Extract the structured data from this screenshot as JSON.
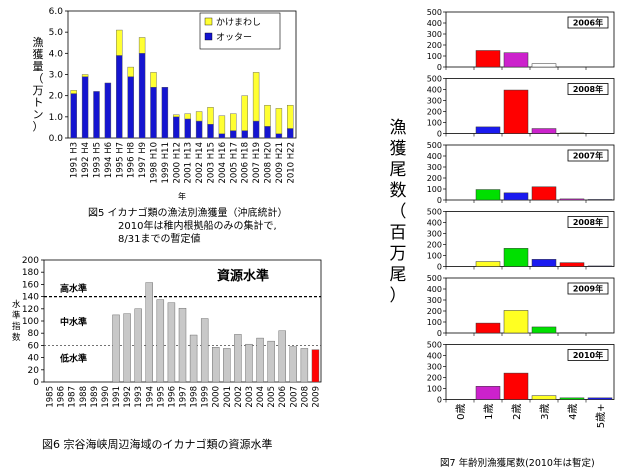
{
  "chart_data": [
    {
      "type": "bar",
      "stacked": true,
      "ylabel": "漁獲量（万トン）",
      "xlabel": "年",
      "ylim": [
        0,
        6
      ],
      "yticks": [
        "0.0",
        "1.0",
        "2.0",
        "3.0",
        "4.0",
        "5.0",
        "6.0"
      ],
      "categories": [
        "1991 H3",
        "1992 H4",
        "1993 H5",
        "1994 H6",
        "1995 H7",
        "1996 H8",
        "1997 H9",
        "1998 H10",
        "1999 H11",
        "2000 H12",
        "2001 H13",
        "2002 H14",
        "2003 H15",
        "2004 H16",
        "2005 H17",
        "2006 H18",
        "2007 H19",
        "2008 H20",
        "2009 H21",
        "2010 H22"
      ],
      "series": [
        {
          "name": "オッター",
          "color": "#1515d0",
          "values": [
            2.1,
            2.9,
            2.2,
            2.6,
            3.9,
            2.9,
            4.0,
            2.4,
            2.4,
            1.0,
            0.9,
            0.8,
            0.65,
            0.2,
            0.35,
            0.35,
            0.8,
            0.55,
            0.2,
            0.45
          ]
        },
        {
          "name": "かけまわし",
          "color": "#ffff33",
          "values": [
            0.15,
            0.1,
            0.0,
            0.0,
            1.2,
            0.45,
            0.75,
            0.7,
            0.0,
            0.1,
            0.25,
            0.45,
            0.8,
            0.85,
            0.8,
            1.65,
            2.3,
            1.0,
            1.2,
            1.1
          ]
        }
      ],
      "legend": [
        "かけまわし",
        "オッター"
      ],
      "caption": [
        "図5 イカナゴ類の漁法別漁獲量（沖底統計）",
        "2010年は稚内根拠船のみの集計で,",
        "8/31までの暫定値"
      ]
    },
    {
      "type": "bar",
      "title": "資源水準",
      "ylabel": "水準指数",
      "ylim": [
        0,
        200
      ],
      "yticks": [
        "0",
        "20",
        "40",
        "60",
        "80",
        "100",
        "120",
        "140",
        "160",
        "180",
        "200"
      ],
      "categories": [
        "1985",
        "1986",
        "1987",
        "1988",
        "1989",
        "1990",
        "1991",
        "1992",
        "1993",
        "1994",
        "1995",
        "1996",
        "1997",
        "1998",
        "1999",
        "2000",
        "2001",
        "2002",
        "2003",
        "2004",
        "2005",
        "2006",
        "2007",
        "2008",
        "2009"
      ],
      "values": [
        0,
        0,
        0,
        0,
        0,
        0,
        110,
        112,
        120,
        163,
        135,
        130,
        121,
        77,
        104,
        57,
        55,
        78,
        62,
        72,
        67,
        84,
        58,
        55,
        53
      ],
      "bar_color": "#c8c8c8",
      "highlight_color": "#ff0000",
      "reference_lines": [
        140,
        60
      ],
      "level_labels": [
        "高水準",
        "中水準",
        "低水準"
      ],
      "caption": "図6 宗谷海峡周辺海域のイカナゴ類の資源水準"
    },
    {
      "type": "bar",
      "ylabel": "漁獲尾数（百万尾）",
      "categories": [
        "0歳",
        "1歳",
        "2歳",
        "3歳",
        "4歳",
        "5歳+"
      ],
      "colors": [
        "#00e000",
        "#1a1af0",
        "#ff0000",
        "#ffff22",
        "#cc22cc",
        "#1a1af0"
      ],
      "ylim": [
        0,
        500
      ],
      "yticks": [
        "0",
        "100",
        "200",
        "300",
        "400",
        "500"
      ],
      "panels": [
        {
          "label": "2006年",
          "values": [
            0,
            150,
            130,
            30,
            0,
            0
          ],
          "colors": [
            "#00e000",
            "#ff0000",
            "#cc22cc",
            "#ffffff",
            "#1a1af0",
            "#1a1af0"
          ]
        },
        {
          "label": "2008年",
          "values": [
            0,
            60,
            395,
            45,
            5,
            0
          ],
          "colors": [
            "#00e000",
            "#1a1af0",
            "#ff0000",
            "#cc22cc",
            "#ffff22",
            "#1a1af0"
          ]
        },
        {
          "label": "2007年",
          "values": [
            0,
            95,
            65,
            120,
            10,
            5
          ],
          "colors": [
            "#00e000",
            "#00e000",
            "#1a1af0",
            "#ff0000",
            "#cc22cc",
            "#1a1af0"
          ]
        },
        {
          "label": "2008年",
          "values": [
            0,
            45,
            165,
            65,
            35,
            5
          ],
          "colors": [
            "#00e000",
            "#ffff22",
            "#00e000",
            "#1a1af0",
            "#ff0000",
            "#1a1af0"
          ]
        },
        {
          "label": "2009年",
          "values": [
            0,
            90,
            205,
            55,
            3,
            3
          ],
          "colors": [
            "#00e000",
            "#ff0000",
            "#ffff22",
            "#00e000",
            "#1a1af0",
            "#1a1af0"
          ]
        },
        {
          "label": "2010年",
          "values": [
            0,
            120,
            240,
            35,
            15,
            15
          ],
          "colors": [
            "#00e000",
            "#cc22cc",
            "#ff0000",
            "#ffff22",
            "#00e000",
            "#1a1af0"
          ]
        }
      ],
      "caption": "図7 年齢別漁獲尾数(2010年は暫定)"
    }
  ]
}
